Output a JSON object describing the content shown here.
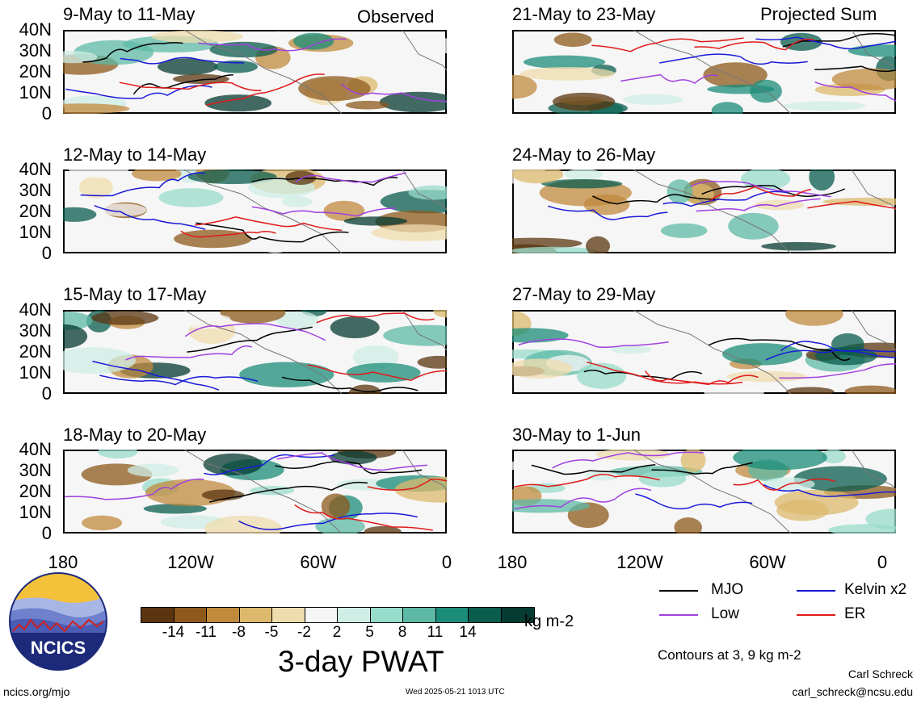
{
  "panels_observed": [
    {
      "title": "9-May to 11-May",
      "corner_label": "Observed"
    },
    {
      "title": "12-May to 14-May"
    },
    {
      "title": "15-May to 17-May"
    },
    {
      "title": "18-May to 20-May"
    }
  ],
  "panels_projected": [
    {
      "title": "21-May to 23-May",
      "corner_label": "Projected Sum"
    },
    {
      "title": "24-May to 26-May"
    },
    {
      "title": "27-May to 29-May"
    },
    {
      "title": "30-May to 1-Jun"
    }
  ],
  "y_axis_labels": [
    "40N",
    "30N",
    "20N",
    "10N",
    "0"
  ],
  "x_axis_labels": [
    "180",
    "120W",
    "60W",
    "0"
  ],
  "colorbar": {
    "colors": [
      "#5a3510",
      "#8e5a1c",
      "#c08a3d",
      "#dcb96d",
      "#efdcae",
      "#f6f6f6",
      "#cfeee6",
      "#98dccb",
      "#5db9a5",
      "#1b8c78",
      "#0a5c4d",
      "#063b32"
    ],
    "tick_labels": [
      "-14",
      "-11",
      "-8",
      "-5",
      "-2",
      "2",
      "5",
      "8",
      "11",
      "14"
    ],
    "units": "kg m-2"
  },
  "main_title": "3-day PWAT",
  "legend": [
    {
      "label": "MJO",
      "color": "#000000"
    },
    {
      "label": "Kelvin x2",
      "color": "#1a1ad8"
    },
    {
      "label": "Low",
      "color": "#a040e0"
    },
    {
      "label": "ER",
      "color": "#e01a1a"
    }
  ],
  "contour_note": "Contours at 3, 9 kg m-2",
  "logo_text": "NCICS",
  "footer": {
    "site": "ncics.org/mjo",
    "timestamp": "Wed 2025-05-21 1013 UTC",
    "author": "Carl Schreck",
    "email": "carl_schreck@ncsu.edu"
  }
}
